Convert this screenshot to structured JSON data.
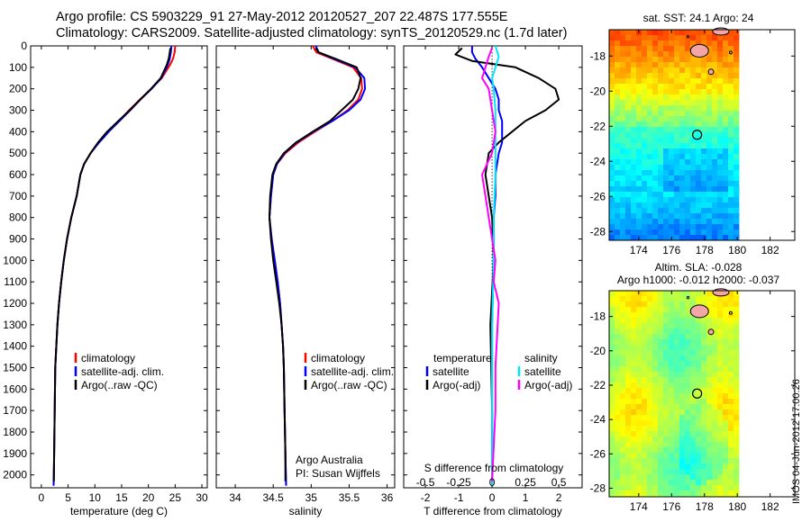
{
  "header": {
    "title_line1": "Argo profile: CS 5903229_91 27-May-2012 20120527_207 22.487S 177.555E",
    "title_line2": "Climatology: CARS2009. Satellite-adjusted climatology: synTS_20120529.nc (1.7d later)"
  },
  "colors": {
    "climatology": "#ff0000",
    "satellite": "#0000ff",
    "argo": "#000000",
    "argo_salinity_adj": "#ff00ff",
    "satellite_salinity": "#00e5ff"
  },
  "chart_data": [
    {
      "type": "line",
      "xlabel": "temperature (deg C)",
      "ylabel": "",
      "xlim": [
        -2,
        31
      ],
      "ylim": [
        2060,
        0
      ],
      "y_reversed": true,
      "xticks": [
        0,
        5,
        10,
        15,
        20,
        25,
        30
      ],
      "yticks": [
        0,
        100,
        200,
        300,
        400,
        500,
        600,
        700,
        800,
        900,
        1000,
        1100,
        1200,
        1300,
        1400,
        1500,
        1600,
        1700,
        1800,
        1900,
        2000
      ],
      "legend": {
        "position": "lower-center",
        "entries": [
          "climatology",
          "satellite-adj. clim.",
          "Argo(..raw -QC)"
        ]
      },
      "series": [
        {
          "name": "climatology",
          "color": "#ff0000",
          "x": [
            25.0,
            24.9,
            24.6,
            24.0,
            22.5,
            20.5,
            18.4,
            16.4,
            14.5,
            12.5,
            10.7,
            9.2,
            8.0,
            7.3,
            6.6,
            5.6,
            4.8,
            4.2,
            3.7,
            3.3,
            3.0,
            2.8,
            2.6,
            2.5,
            2.4,
            2.3
          ],
          "y": [
            0,
            30,
            60,
            90,
            150,
            200,
            250,
            300,
            350,
            400,
            450,
            500,
            550,
            600,
            700,
            800,
            900,
            1000,
            1100,
            1200,
            1300,
            1400,
            1500,
            1700,
            1900,
            2050
          ]
        },
        {
          "name": "satellite-adj. clim.",
          "color": "#0000ff",
          "x": [
            24.3,
            24.2,
            24.0,
            23.6,
            22.4,
            20.6,
            18.5,
            16.6,
            14.6,
            12.6,
            10.8,
            9.2,
            8.0,
            7.3,
            6.6,
            5.6,
            4.8,
            4.2,
            3.7,
            3.3,
            3.0,
            2.8,
            2.6,
            2.5,
            2.4,
            2.3
          ],
          "y": [
            0,
            30,
            60,
            90,
            150,
            200,
            250,
            300,
            350,
            400,
            450,
            500,
            550,
            600,
            700,
            800,
            900,
            1000,
            1100,
            1200,
            1300,
            1400,
            1500,
            1700,
            1900,
            2050
          ]
        },
        {
          "name": "Argo(..raw -QC)",
          "color": "#000000",
          "x": [
            24.1,
            24.0,
            23.8,
            23.4,
            22.3,
            20.5,
            18.5,
            16.5,
            14.4,
            12.3,
            10.6,
            9.2,
            8.0,
            7.3,
            6.6,
            5.6,
            4.8,
            4.2,
            3.7,
            3.3,
            3.0,
            2.8,
            2.6,
            2.5,
            2.4,
            2.35
          ],
          "y": [
            10,
            30,
            60,
            90,
            150,
            200,
            250,
            300,
            350,
            400,
            450,
            500,
            550,
            600,
            700,
            800,
            900,
            1000,
            1100,
            1200,
            1300,
            1400,
            1500,
            1700,
            1900,
            2030
          ]
        }
      ]
    },
    {
      "type": "line",
      "xlabel": "salinity",
      "xlim": [
        33.75,
        36.1
      ],
      "ylim": [
        2060,
        0
      ],
      "y_reversed": true,
      "xticks": [
        34,
        34.5,
        35,
        35.5,
        36
      ],
      "legend": {
        "position": "lower-center",
        "entries": [
          "climatology",
          "satellite-adj. clim.",
          "Argo(..raw -QC)"
        ]
      },
      "annotation": [
        "Argo Australia",
        "PI: Susan Wijffels"
      ],
      "series": [
        {
          "name": "climatology",
          "color": "#ff0000",
          "x": [
            35.02,
            35.07,
            35.28,
            35.55,
            35.66,
            35.67,
            35.62,
            35.48,
            35.28,
            35.05,
            34.83,
            34.66,
            34.55,
            34.5,
            34.47,
            34.45,
            34.48,
            34.52,
            34.56,
            34.59,
            34.61,
            34.63,
            34.64,
            34.65,
            34.66,
            34.67
          ],
          "y": [
            0,
            30,
            60,
            100,
            150,
            200,
            250,
            300,
            350,
            400,
            450,
            500,
            550,
            600,
            700,
            800,
            900,
            1000,
            1100,
            1200,
            1300,
            1400,
            1500,
            1700,
            1900,
            2050
          ]
        },
        {
          "name": "satellite-adj. clim.",
          "color": "#0000ff",
          "x": [
            35.06,
            35.1,
            35.3,
            35.58,
            35.7,
            35.71,
            35.65,
            35.5,
            35.28,
            35.03,
            34.81,
            34.65,
            34.55,
            34.5,
            34.47,
            34.45,
            34.48,
            34.52,
            34.56,
            34.59,
            34.61,
            34.63,
            34.64,
            34.65,
            34.66,
            34.67
          ],
          "y": [
            0,
            30,
            60,
            100,
            150,
            200,
            250,
            300,
            350,
            400,
            450,
            500,
            550,
            600,
            700,
            800,
            900,
            1000,
            1100,
            1200,
            1300,
            1400,
            1500,
            1700,
            1900,
            2050
          ]
        },
        {
          "name": "Argo(..raw -QC)",
          "color": "#000000",
          "x": [
            35.06,
            35.1,
            35.32,
            35.6,
            35.65,
            35.62,
            35.55,
            35.4,
            35.25,
            35.02,
            34.8,
            34.64,
            34.54,
            34.49,
            34.46,
            34.45,
            34.47,
            34.5,
            34.54,
            34.58,
            34.61,
            34.63,
            34.64,
            34.65,
            34.66,
            34.66
          ],
          "y": [
            10,
            30,
            60,
            100,
            150,
            200,
            250,
            300,
            350,
            400,
            450,
            500,
            550,
            600,
            700,
            800,
            900,
            1000,
            1100,
            1200,
            1300,
            1400,
            1500,
            1700,
            1900,
            2030
          ]
        }
      ]
    },
    {
      "type": "line",
      "xlabel": "T difference from climatology",
      "xlabel_top": "S difference from climatology",
      "xlim": [
        -2.65,
        2.7
      ],
      "ylim": [
        2060,
        0
      ],
      "y_reversed": true,
      "xticks": [
        -2,
        -1,
        0,
        1,
        2
      ],
      "xticks_top": [
        {
          "v": -0.5,
          "label": "-0.5"
        },
        {
          "v": -0.25,
          "label": "-0.25"
        },
        {
          "v": 0,
          "label": "0"
        },
        {
          "v": 0.25,
          "label": "0.25"
        },
        {
          "v": 0.5,
          "label": "0.5"
        }
      ],
      "legend_left": {
        "title": "temperature",
        "entries": [
          "satellite",
          "Argo(-adj)"
        ]
      },
      "legend_right": {
        "title": "salinity",
        "entries": [
          "satellite",
          "Argo(-adj)"
        ]
      },
      "series": [
        {
          "name": "temperature satellite",
          "color": "#0000ff",
          "x": [
            -0.6,
            -0.6,
            -0.5,
            -0.3,
            -0.1,
            0.1,
            0.2,
            0.2,
            0.3,
            0.3,
            0.3,
            0.2,
            0.1,
            0.1,
            0.05,
            0.05,
            0.0,
            0.0,
            0.0
          ],
          "y": [
            0,
            30,
            60,
            100,
            150,
            200,
            250,
            300,
            350,
            400,
            450,
            500,
            600,
            700,
            800,
            1000,
            1300,
            1700,
            2050
          ]
        },
        {
          "name": "temperature Argo(-adj)",
          "color": "#000000",
          "x": [
            -0.9,
            -1.1,
            -0.6,
            0.7,
            1.4,
            1.9,
            2.0,
            1.6,
            1.0,
            0.6,
            0.2,
            -0.1,
            -0.2,
            -0.1,
            0.0,
            0.05,
            -0.05,
            0.0,
            0.0
          ],
          "y": [
            10,
            40,
            70,
            100,
            150,
            200,
            250,
            300,
            350,
            400,
            450,
            500,
            600,
            700,
            800,
            1000,
            1300,
            1700,
            2030
          ]
        },
        {
          "name": "salinity satellite",
          "color": "#00e5ff",
          "x": [
            0.1,
            0.2,
            0.1,
            0.0,
            0.05,
            0.1,
            0.1,
            0.1,
            0.1,
            0.05,
            0.05,
            0.0,
            0.0,
            0.0
          ],
          "y": [
            0,
            50,
            100,
            150,
            200,
            300,
            400,
            500,
            600,
            800,
            1000,
            1300,
            1700,
            2050
          ]
        },
        {
          "name": "salinity Argo(-adj)",
          "color": "#ff00ff",
          "x": [
            0.0,
            -0.1,
            -0.2,
            -0.3,
            -0.1,
            0.0,
            0.1,
            0.0,
            -0.3,
            -0.2,
            -0.1,
            0.0,
            0.1,
            0.05,
            0.2,
            0.1,
            0.1,
            0.0
          ],
          "y": [
            10,
            50,
            100,
            150,
            200,
            300,
            400,
            500,
            600,
            700,
            800,
            900,
            1000,
            1100,
            1200,
            1500,
            1700,
            2030
          ]
        }
      ]
    },
    {
      "type": "heatmap",
      "title": "sat. SST: 24.1 Argo: 24",
      "xticks": [
        174,
        176,
        178,
        180,
        182
      ],
      "yticks": [
        -18,
        -20,
        -22,
        -24,
        -26,
        -28
      ],
      "xlim": [
        172.2,
        183.5
      ],
      "ylim": [
        -28.5,
        -16.5
      ],
      "marker": {
        "lon": 177.555,
        "lat": -22.487
      }
    },
    {
      "type": "heatmap",
      "title": "Altim. SLA: -0.028",
      "subtitle": "Argo h1000: -0.012 h2000: -0.037",
      "xticks": [
        174,
        176,
        178,
        180,
        182
      ],
      "yticks": [
        -18,
        -20,
        -22,
        -24,
        -26,
        -28
      ],
      "xlim": [
        172.2,
        183.5
      ],
      "ylim": [
        -28.5,
        -16.5
      ],
      "marker": {
        "lon": 177.555,
        "lat": -22.487
      }
    }
  ],
  "footer": {
    "stamp": "IMOS 04-Jun-2012 17:00:26"
  }
}
